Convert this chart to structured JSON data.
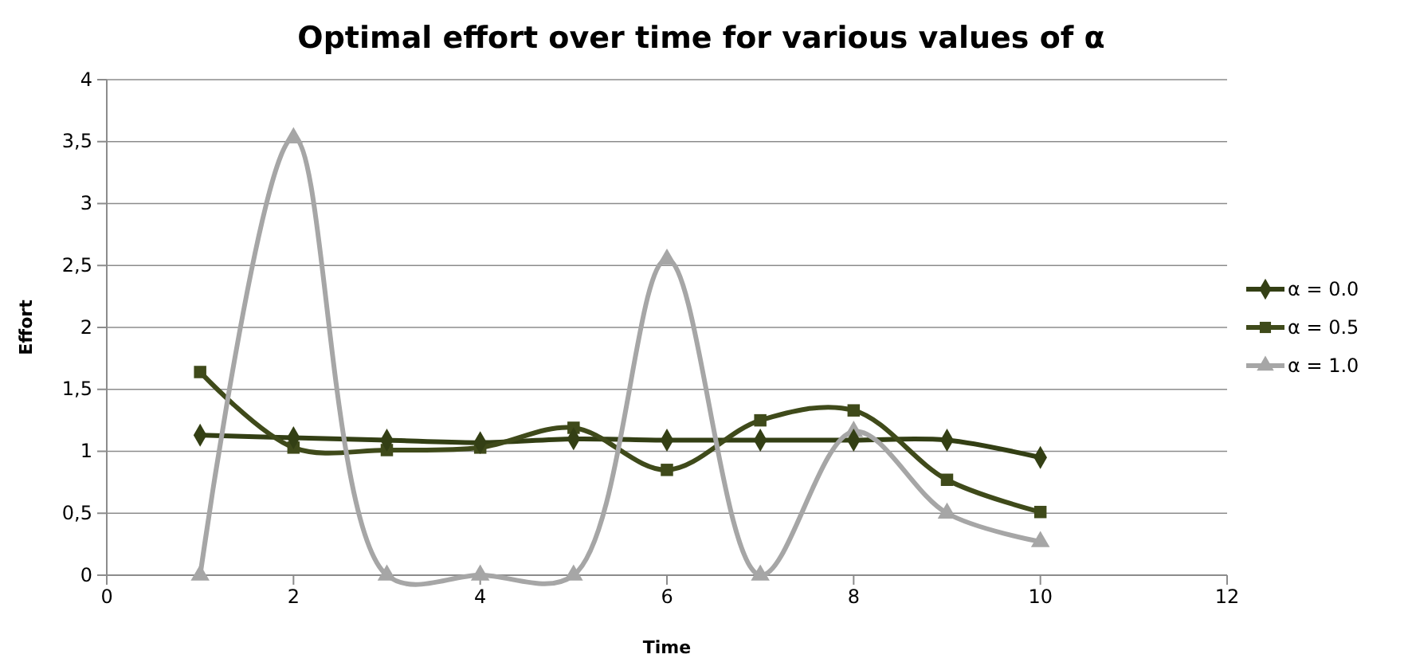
{
  "chart_data": {
    "type": "line",
    "title": "Optimal effort over time for various values of α",
    "xlabel": "Time",
    "ylabel": "Effort",
    "x": [
      1,
      2,
      3,
      4,
      5,
      6,
      7,
      8,
      9,
      10
    ],
    "series": [
      {
        "name": "α = 0.0",
        "color": "#333f14",
        "marker": "diamond",
        "values": [
          1.13,
          1.11,
          1.09,
          1.07,
          1.1,
          1.09,
          1.09,
          1.09,
          1.09,
          0.95
        ]
      },
      {
        "name": "α = 0.5",
        "color": "#3f4a1a",
        "marker": "square",
        "values": [
          1.64,
          1.03,
          1.01,
          1.03,
          1.19,
          0.85,
          1.25,
          1.33,
          0.77,
          0.51
        ]
      },
      {
        "name": "α = 1.0",
        "color": "#a6a6a6",
        "marker": "triangle",
        "values": [
          0,
          3.53,
          0,
          0,
          0,
          2.55,
          0,
          1.16,
          0.5,
          0.27
        ]
      }
    ],
    "xlim": [
      0,
      12
    ],
    "xticks": [
      0,
      2,
      4,
      6,
      8,
      10,
      12
    ],
    "ylim": [
      0,
      4
    ],
    "yticks": [
      0,
      {
        "value": 0.5,
        "label": "0,5"
      },
      1,
      {
        "value": 1.5,
        "label": "1,5"
      },
      2,
      {
        "value": 2.5,
        "label": "2,5"
      },
      3,
      {
        "value": 3.5,
        "label": "3,5"
      },
      4
    ],
    "grid": "y",
    "legend": "right"
  }
}
